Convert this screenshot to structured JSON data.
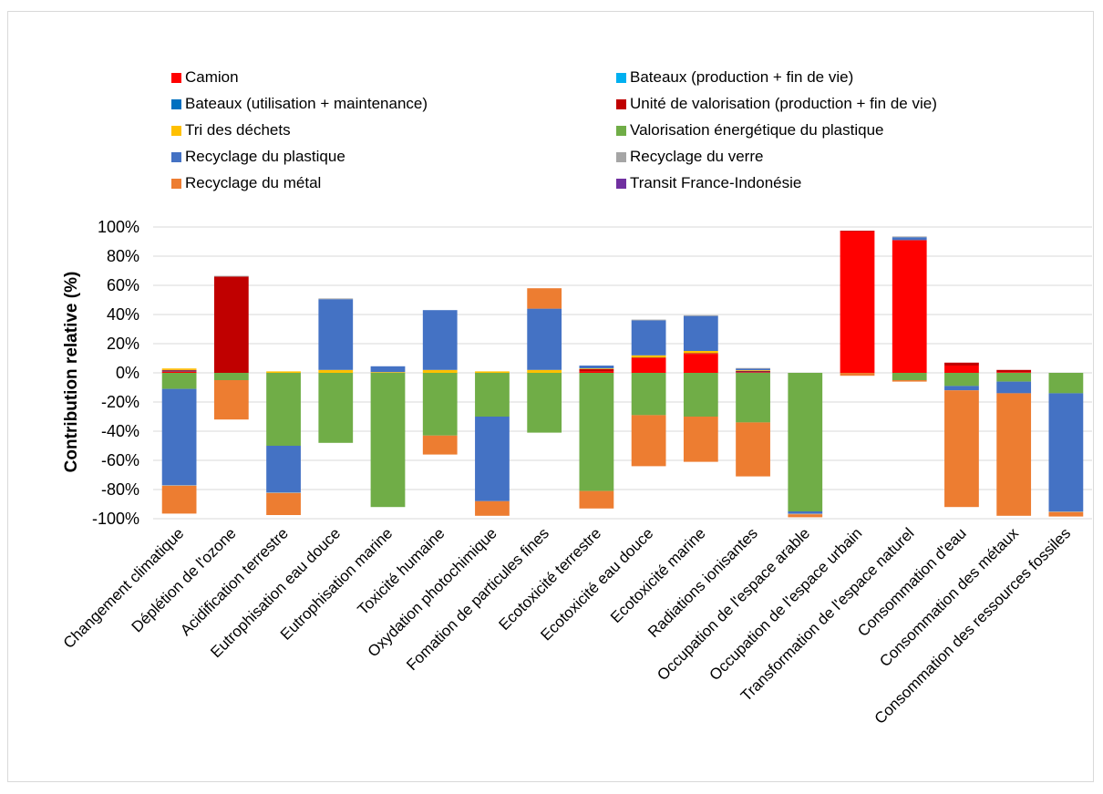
{
  "chart_data": {
    "type": "bar",
    "stacked": true,
    "title": "",
    "xlabel": "",
    "ylabel": "Contribution relative (%)",
    "ylim": [
      -100,
      100
    ],
    "yticks": [
      "100%",
      "80%",
      "60%",
      "40%",
      "20%",
      "0%",
      "-20%",
      "-40%",
      "-60%",
      "-80%",
      "-100%"
    ],
    "grid": true,
    "legend_position": "top",
    "categories": [
      "Changement climatique",
      "Déplétion de l'ozone",
      "Acidification terrestre",
      "Eutrophisation eau douce",
      "Eutrophisation marine",
      "Toxicité humaine",
      "Oxydation photochimique",
      "Fomation de particules fines",
      "Ecotoxicité terrestre",
      "Ecotoxicité eau douce",
      "Ecotoxicité marine",
      "Radiations ionisantes",
      "Occupation de l'espace arable",
      "Occupation de l'espace urbain",
      "Transformation de l'espace naturel",
      "Consommation d'eau",
      "Consommation des métaux",
      "Consommation des ressources fossiles"
    ],
    "series": [
      {
        "name": "Camion",
        "color": "#ff0000",
        "values": [
          1,
          0,
          0,
          0,
          0,
          0,
          0,
          0,
          1,
          10,
          13,
          0.5,
          0,
          97,
          91,
          5,
          0.5,
          0
        ]
      },
      {
        "name": "Bateaux (production + fin de vie)",
        "color": "#00b0f0",
        "values": [
          0,
          0,
          0,
          0,
          0,
          0,
          0,
          0,
          0,
          0,
          0,
          0,
          0,
          0,
          0,
          0,
          0,
          0
        ]
      },
      {
        "name": "Bateaux (utilisation + maintenance)",
        "color": "#0070c0",
        "values": [
          0.5,
          0,
          0,
          0,
          0,
          0,
          0,
          0,
          0,
          0,
          0,
          0.5,
          0,
          0,
          0,
          0,
          0,
          0
        ]
      },
      {
        "name": "Unité de valorisation (production + fin de vie)",
        "color": "#c00000",
        "values": [
          0.5,
          66,
          0,
          0,
          0,
          0,
          0,
          0,
          1.5,
          0.5,
          0.5,
          0.3,
          0,
          0.5,
          0,
          2,
          1.5,
          0
        ]
      },
      {
        "name": "Tri des déchets",
        "color": "#ffc000",
        "values": [
          1,
          0,
          1,
          2,
          0.5,
          2,
          1,
          2,
          0.5,
          1.5,
          1.5,
          0.5,
          0,
          0,
          0,
          0,
          0,
          0
        ]
      },
      {
        "name": "Valorisation énergétique du plastique",
        "color": "#70ad47",
        "values": [
          -11,
          -5,
          -50,
          -48,
          -92,
          -43,
          -30,
          -41,
          -81,
          -29,
          -30,
          -34,
          -95,
          0,
          -5,
          -9,
          -6,
          -14
        ]
      },
      {
        "name": "Recyclage du plastique",
        "color": "#4472c4",
        "values": [
          -66,
          0,
          -32,
          48.5,
          4,
          41,
          -58,
          42,
          2,
          24,
          24,
          1,
          -1.5,
          0,
          2,
          -3,
          -8,
          -81
        ]
      },
      {
        "name": "Recyclage du verre",
        "color": "#a5a5a5",
        "values": [
          -0.5,
          0.5,
          -0.5,
          0.5,
          0,
          0,
          0,
          0,
          0,
          0.5,
          0.5,
          0.5,
          -0.5,
          0,
          0.5,
          0,
          0,
          -0.5
        ]
      },
      {
        "name": "Recyclage du métal",
        "color": "#ed7d31",
        "values": [
          -19,
          -27,
          -15,
          0,
          0,
          -13,
          -10,
          14,
          -12,
          -35,
          -31,
          -37,
          -2,
          -2,
          -1,
          -80,
          -84,
          -3
        ]
      },
      {
        "name": "Transit France-Indonésie",
        "color": "#7030a0",
        "values": [
          0,
          0,
          0,
          0,
          0,
          0,
          0,
          0,
          0,
          0,
          0,
          0,
          0,
          0,
          0,
          0,
          0,
          0
        ]
      }
    ]
  }
}
